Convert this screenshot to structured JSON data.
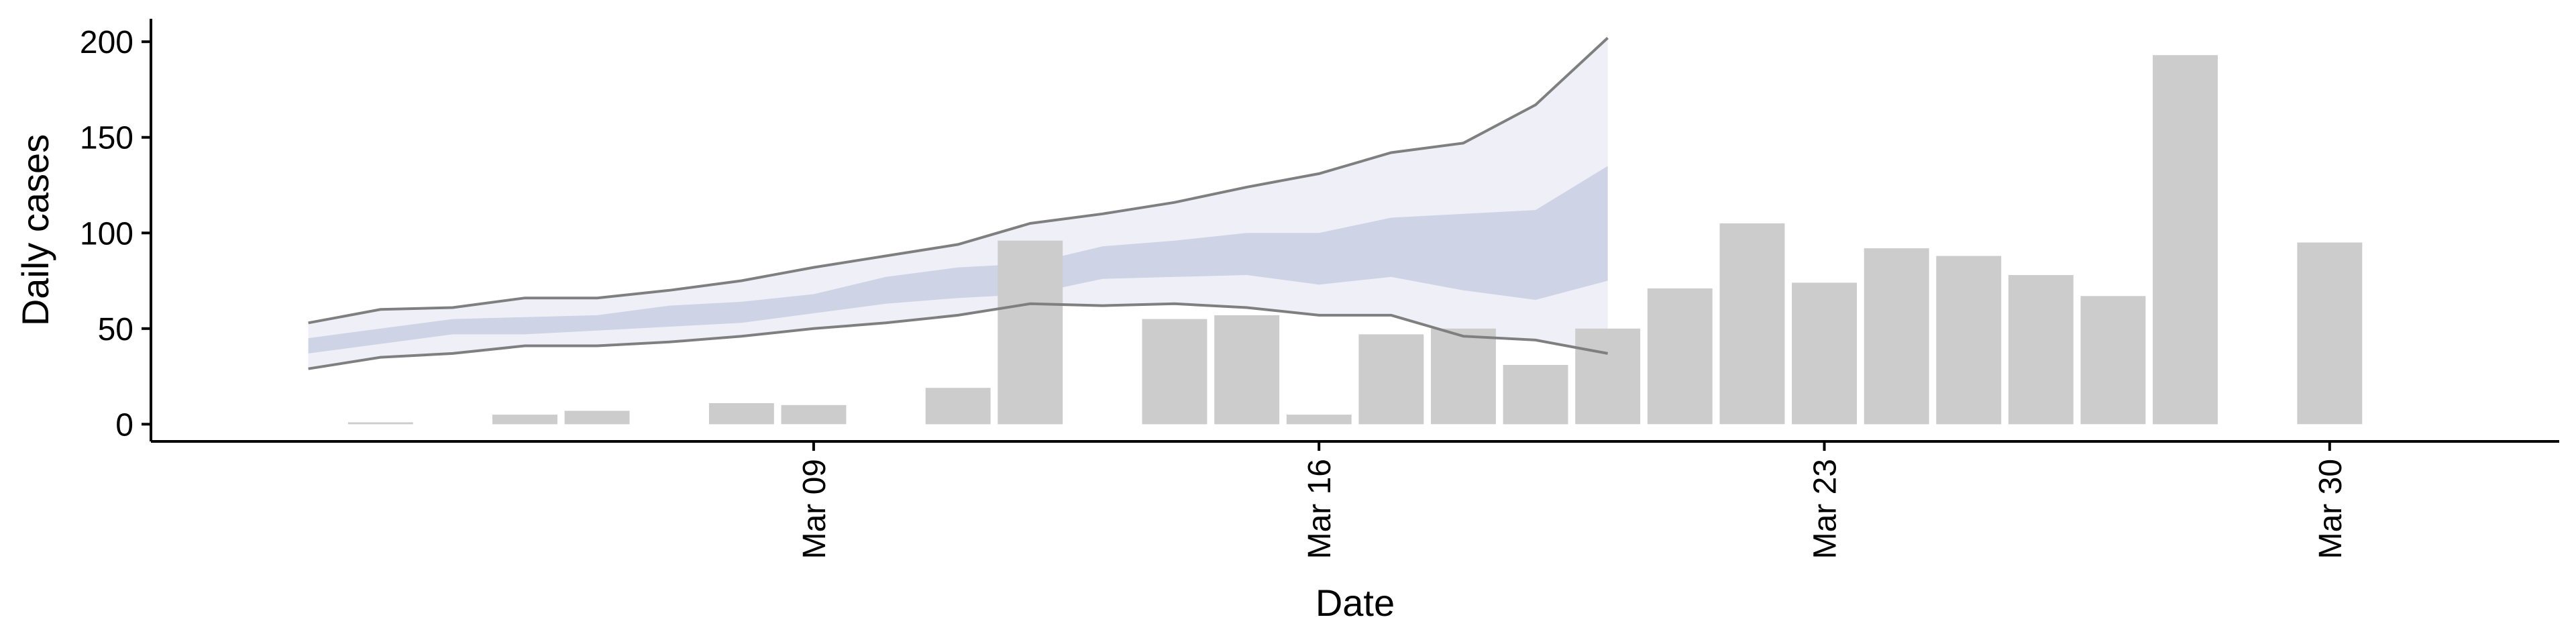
{
  "chart_data": {
    "type": "bar",
    "xlabel": "Date",
    "ylabel": "Daily cases",
    "ylim": [
      -9,
      212
    ],
    "xlim": [
      "2020-03-01",
      "2020-04-01"
    ],
    "y_ticks": [
      0,
      50,
      100,
      150,
      200
    ],
    "x_ticks": [
      {
        "date": "2020-03-09",
        "label": "Mar 09"
      },
      {
        "date": "2020-03-16",
        "label": "Mar 16"
      },
      {
        "date": "2020-03-23",
        "label": "Mar 23"
      },
      {
        "date": "2020-03-30",
        "label": "Mar 30"
      }
    ],
    "grid": false,
    "series": [
      {
        "kind": "bar",
        "color": "#cccccc",
        "points": [
          {
            "date": "2020-03-03",
            "value": 1
          },
          {
            "date": "2020-03-05",
            "value": 5
          },
          {
            "date": "2020-03-06",
            "value": 7
          },
          {
            "date": "2020-03-08",
            "value": 11
          },
          {
            "date": "2020-03-09",
            "value": 10
          },
          {
            "date": "2020-03-11",
            "value": 19
          },
          {
            "date": "2020-03-12",
            "value": 96
          },
          {
            "date": "2020-03-14",
            "value": 55
          },
          {
            "date": "2020-03-15",
            "value": 57
          },
          {
            "date": "2020-03-16",
            "value": 5
          },
          {
            "date": "2020-03-17",
            "value": 47
          },
          {
            "date": "2020-03-18",
            "value": 50
          },
          {
            "date": "2020-03-19",
            "value": 31
          },
          {
            "date": "2020-03-20",
            "value": 50
          },
          {
            "date": "2020-03-21",
            "value": 71
          },
          {
            "date": "2020-03-22",
            "value": 105
          },
          {
            "date": "2020-03-23",
            "value": 74
          },
          {
            "date": "2020-03-24",
            "value": 92
          },
          {
            "date": "2020-03-25",
            "value": 88
          },
          {
            "date": "2020-03-26",
            "value": 78
          },
          {
            "date": "2020-03-27",
            "value": 67
          },
          {
            "date": "2020-03-28",
            "value": 193
          },
          {
            "date": "2020-03-30",
            "value": 95
          }
        ]
      },
      {
        "kind": "ribbon",
        "color": "#b7bfd8",
        "points": [
          {
            "date": "2020-03-02",
            "lower": 37,
            "upper": 45
          },
          {
            "date": "2020-03-03",
            "lower": 42,
            "upper": 50
          },
          {
            "date": "2020-03-04",
            "lower": 47,
            "upper": 55
          },
          {
            "date": "2020-03-05",
            "lower": 47,
            "upper": 56
          },
          {
            "date": "2020-03-06",
            "lower": 49,
            "upper": 57
          },
          {
            "date": "2020-03-07",
            "lower": 51,
            "upper": 62
          },
          {
            "date": "2020-03-08",
            "lower": 53,
            "upper": 64
          },
          {
            "date": "2020-03-09",
            "lower": 58,
            "upper": 68
          },
          {
            "date": "2020-03-10",
            "lower": 63,
            "upper": 77
          },
          {
            "date": "2020-03-11",
            "lower": 66,
            "upper": 82
          },
          {
            "date": "2020-03-12",
            "lower": 68,
            "upper": 84
          },
          {
            "date": "2020-03-13",
            "lower": 76,
            "upper": 93
          },
          {
            "date": "2020-03-14",
            "lower": 77,
            "upper": 96
          },
          {
            "date": "2020-03-15",
            "lower": 78,
            "upper": 100
          },
          {
            "date": "2020-03-16",
            "lower": 73,
            "upper": 100
          },
          {
            "date": "2020-03-17",
            "lower": 77,
            "upper": 108
          },
          {
            "date": "2020-03-18",
            "lower": 70,
            "upper": 110
          },
          {
            "date": "2020-03-19",
            "lower": 65,
            "upper": 112
          },
          {
            "date": "2020-03-20",
            "lower": 75,
            "upper": 135
          }
        ]
      },
      {
        "kind": "ribbon",
        "color": "#dfe2ef",
        "points": [
          {
            "date": "2020-03-02",
            "lower": 29,
            "upper": 53
          },
          {
            "date": "2020-03-03",
            "lower": 35,
            "upper": 60
          },
          {
            "date": "2020-03-04",
            "lower": 37,
            "upper": 61
          },
          {
            "date": "2020-03-05",
            "lower": 41,
            "upper": 66
          },
          {
            "date": "2020-03-06",
            "lower": 41,
            "upper": 66
          },
          {
            "date": "2020-03-07",
            "lower": 43,
            "upper": 70
          },
          {
            "date": "2020-03-08",
            "lower": 46,
            "upper": 75
          },
          {
            "date": "2020-03-09",
            "lower": 50,
            "upper": 82
          },
          {
            "date": "2020-03-10",
            "lower": 53,
            "upper": 88
          },
          {
            "date": "2020-03-11",
            "lower": 57,
            "upper": 94
          },
          {
            "date": "2020-03-12",
            "lower": 63,
            "upper": 105
          },
          {
            "date": "2020-03-13",
            "lower": 62,
            "upper": 110
          },
          {
            "date": "2020-03-14",
            "lower": 63,
            "upper": 116
          },
          {
            "date": "2020-03-15",
            "lower": 61,
            "upper": 124
          },
          {
            "date": "2020-03-16",
            "lower": 57,
            "upper": 131
          },
          {
            "date": "2020-03-17",
            "lower": 57,
            "upper": 142
          },
          {
            "date": "2020-03-18",
            "lower": 46,
            "upper": 147
          },
          {
            "date": "2020-03-19",
            "lower": 44,
            "upper": 167
          },
          {
            "date": "2020-03-20",
            "lower": 37,
            "upper": 202
          }
        ]
      }
    ]
  }
}
